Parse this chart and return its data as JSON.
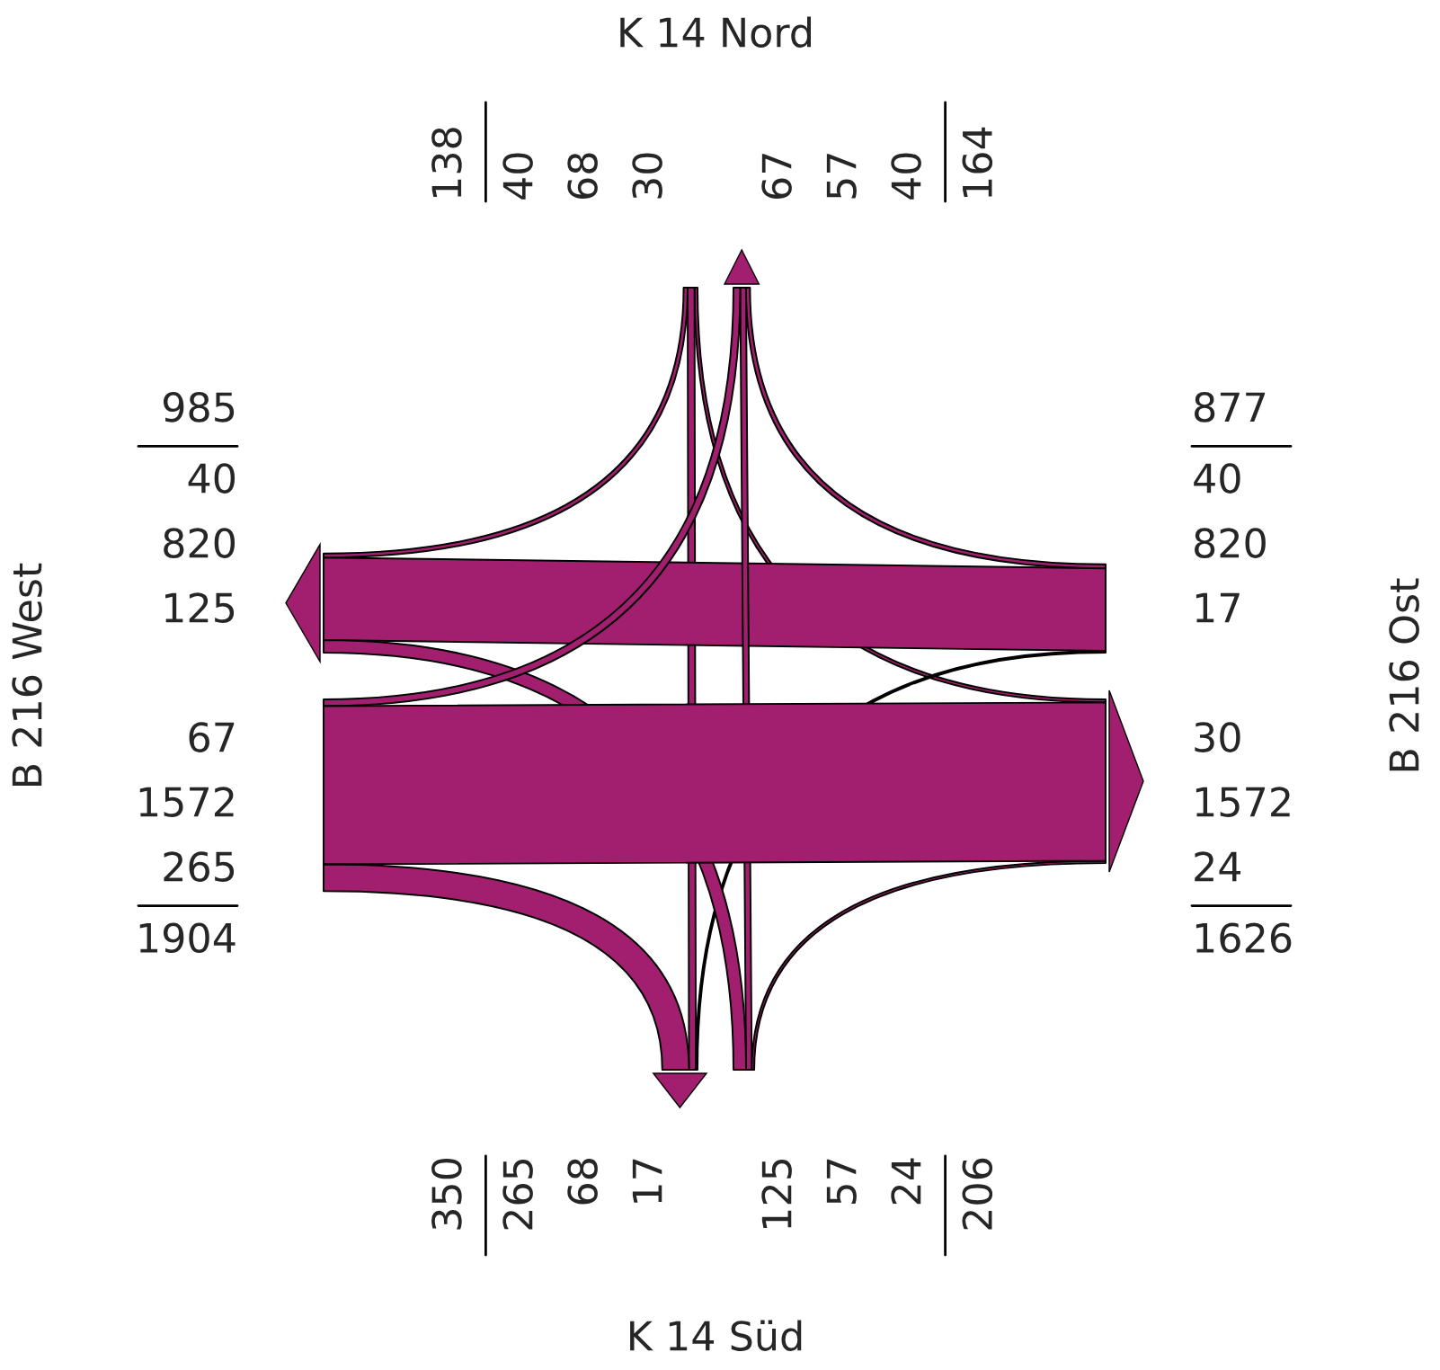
{
  "chart_data": {
    "type": "other",
    "categories": [
      "K 14 Nord",
      "B 216 Ost",
      "K 14 Süd",
      "B 216 West"
    ],
    "series": [
      {
        "values": [
          null,
          30,
          68,
          40
        ]
      },
      {
        "values": [
          40,
          null,
          17,
          820
        ]
      },
      {
        "values": [
          57,
          24,
          null,
          125
        ]
      },
      {
        "values": [
          67,
          1572,
          265,
          null
        ]
      }
    ],
    "annotations": [
      "40",
      "68",
      "30",
      "40",
      "820",
      "17",
      "125",
      "57",
      "24",
      "67",
      "1572",
      "265"
    ],
    "totals": [
      [
        "138",
        "164"
      ],
      [
        "877",
        "1626"
      ],
      [
        "206",
        "350"
      ],
      [
        "1904",
        "985"
      ]
    ],
    "data_labels": true,
    "color": "#a21f6f"
  }
}
